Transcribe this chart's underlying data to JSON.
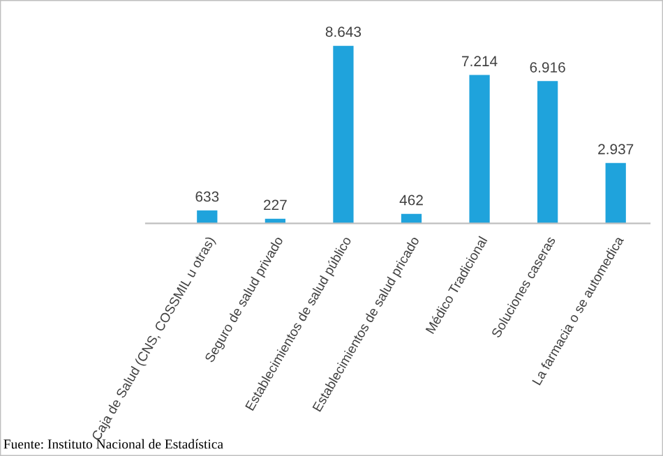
{
  "chart_data": {
    "type": "bar",
    "categories": [
      "Caja de Salud (CNS, COSSMIL u otras)",
      "Seguro de salud privado",
      "Establecimientos de salud público",
      "Establecimientos de salud pricado",
      "Médico Tradicional",
      "Soluciones caseras",
      "La farmacia o se automedica"
    ],
    "values": [
      633,
      227,
      8643,
      462,
      7214,
      6916,
      2937
    ],
    "value_labels": [
      "633",
      "227",
      "8.643",
      "462",
      "7.214",
      "6.916",
      "2.937"
    ],
    "color": "#1fa3dc",
    "grid": false,
    "annotations": [
      "Fuente: Instituto Nacional de Estadística"
    ]
  }
}
